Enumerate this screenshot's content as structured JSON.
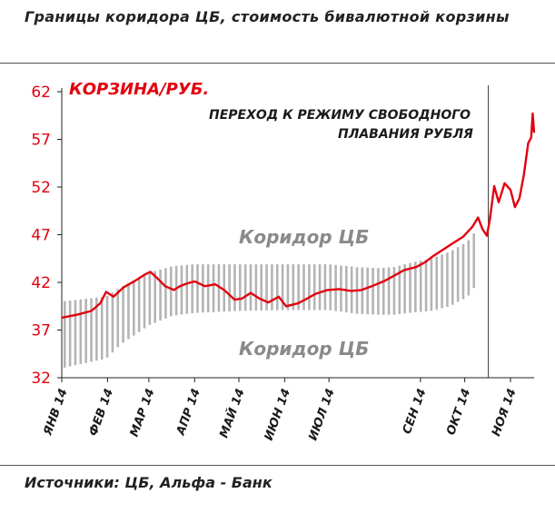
{
  "header": {
    "title": "Границы коридора ЦБ,  стоимость бивалютной корзины"
  },
  "footer": {
    "source": "Источники: ЦБ, Альфа - Банк"
  },
  "chart_data": {
    "type": "line",
    "title": "",
    "series_label": "Корзина/руб.",
    "annotation": [
      "Переход к режиму свободного",
      "плавания рубля"
    ],
    "corridor_labels": [
      "Коридор ЦБ",
      "Коридор ЦБ"
    ],
    "ylim": [
      32,
      62
    ],
    "y_ticks": [
      32,
      37,
      42,
      47,
      52,
      57,
      62
    ],
    "x_ticks": [
      "янв 14",
      "фев 14",
      "мар 14",
      "апр 14",
      "май 14",
      "июн 14",
      "июл 14",
      "сен 14",
      "окт 14",
      "ноя 14"
    ],
    "xlim": [
      0,
      320
    ],
    "x_tick_positions": [
      0,
      31,
      59,
      90,
      120,
      151,
      181,
      243,
      273,
      304
    ],
    "float_transition_x": 289,
    "grid": false,
    "colors": {
      "series": "#e3000f",
      "corridor": "#b4b4b4",
      "axis_text": "#e3000f",
      "annotation": "#1a1a1a"
    },
    "series": [
      {
        "name": "Корзина/руб.",
        "x": [
          0,
          10,
          20,
          26,
          30,
          35,
          42,
          50,
          56,
          60,
          65,
          70,
          76,
          80,
          85,
          90,
          97,
          104,
          110,
          117,
          122,
          128,
          134,
          140,
          147,
          152,
          160,
          165,
          172,
          180,
          188,
          196,
          203,
          210,
          218,
          224,
          232,
          240,
          246,
          252,
          258,
          265,
          272,
          278,
          282,
          285,
          288,
          290,
          293,
          296,
          300,
          304,
          307,
          310,
          313,
          316,
          318,
          319,
          320
        ],
        "y": [
          38.3,
          38.6,
          39.0,
          39.8,
          41.0,
          40.5,
          41.5,
          42.2,
          42.8,
          43.1,
          42.4,
          41.6,
          41.2,
          41.6,
          41.9,
          42.1,
          41.6,
          41.8,
          41.2,
          40.2,
          40.3,
          40.9,
          40.3,
          39.9,
          40.5,
          39.5,
          39.8,
          40.2,
          40.8,
          41.2,
          41.3,
          41.1,
          41.2,
          41.6,
          42.1,
          42.6,
          43.3,
          43.6,
          44.1,
          44.8,
          45.4,
          46.1,
          46.8,
          47.8,
          48.8,
          47.6,
          46.9,
          48.6,
          52.1,
          50.4,
          52.4,
          51.7,
          49.9,
          50.8,
          53.2,
          56.6,
          57.2,
          59.7,
          57.7
        ]
      }
    ],
    "corridor": {
      "x": [
        0,
        30,
        40,
        59,
        75,
        90,
        120,
        151,
        181,
        200,
        215,
        225,
        235,
        250,
        263,
        275,
        281
      ],
      "lower": [
        33.0,
        34.0,
        35.5,
        37.5,
        38.5,
        38.8,
        39.0,
        39.1,
        39.1,
        38.7,
        38.6,
        38.6,
        38.8,
        39.0,
        39.5,
        40.5,
        41.8
      ],
      "upper": [
        40.0,
        40.5,
        41.5,
        43.0,
        43.7,
        43.9,
        43.9,
        43.9,
        43.9,
        43.6,
        43.5,
        43.6,
        44.0,
        44.5,
        45.2,
        46.3,
        47.5
      ]
    }
  }
}
